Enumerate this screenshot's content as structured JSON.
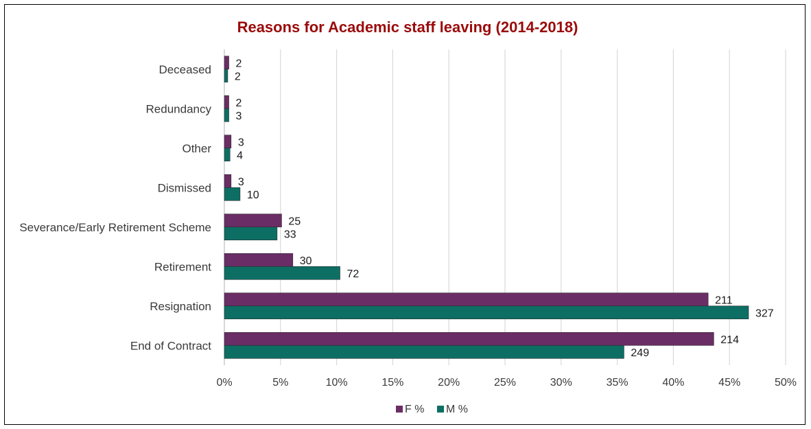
{
  "chart_data": {
    "type": "bar",
    "orientation": "horizontal",
    "title": "Reasons for Academic staff leaving (2014-2018)",
    "title_color": "#9b0a0a",
    "categories": [
      "Deceased",
      "Redundancy",
      "Other",
      "Dismissed",
      "Severance/Early Retirement Scheme",
      "Retirement",
      "Resignation",
      "End of Contract"
    ],
    "series": [
      {
        "name": "F %",
        "color": "#6b2d66",
        "values": [
          0.4,
          0.4,
          0.6,
          0.6,
          5.1,
          6.1,
          43.1,
          43.6
        ],
        "labels": [
          "2",
          "2",
          "3",
          "3",
          "25",
          "30",
          "211",
          "214"
        ]
      },
      {
        "name": "M %",
        "color": "#0d6e64",
        "values": [
          0.3,
          0.4,
          0.5,
          1.4,
          4.7,
          10.3,
          46.7,
          35.6
        ],
        "labels": [
          "2",
          "3",
          "4",
          "10",
          "33",
          "72",
          "327",
          "249"
        ]
      }
    ],
    "xlim": [
      0,
      50
    ],
    "xticks": [
      "0%",
      "5%",
      "10%",
      "15%",
      "20%",
      "25%",
      "30%",
      "35%",
      "40%",
      "45%",
      "50%"
    ],
    "grid": true,
    "legend_position": "bottom"
  }
}
